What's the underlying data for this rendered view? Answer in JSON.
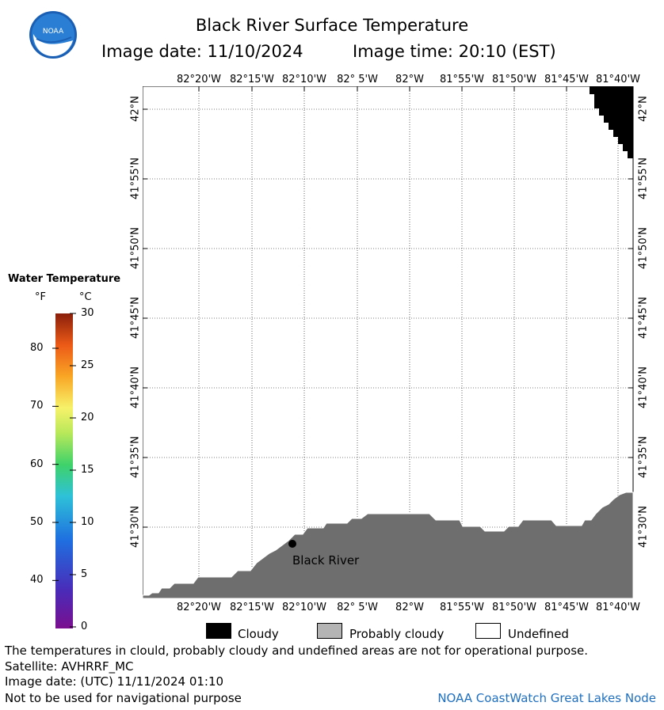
{
  "title": "Black River Surface Temperature",
  "image_date_label": "Image date: 11/10/2024",
  "image_time_label": "Image time: 20:10 (EST)",
  "logo_text": "NOAA",
  "lon_labels": [
    "82°20'W",
    "82°15'W",
    "82°10'W",
    "82° 5'W",
    "82°W",
    "81°55'W",
    "81°50'W",
    "81°45'W",
    "81°40'W"
  ],
  "lat_labels": [
    "42°N",
    "41°55'N",
    "41°50'N",
    "41°45'N",
    "41°40'N",
    "41°35'N",
    "41°30'N"
  ],
  "place_label": "Black River",
  "colorbar": {
    "title": "Water Temperature",
    "unit_f": "°F",
    "unit_c": "°C",
    "f_ticks": [
      "80",
      "70",
      "60",
      "50",
      "40"
    ],
    "c_ticks": [
      "30",
      "25",
      "20",
      "15",
      "10",
      "5",
      "0"
    ]
  },
  "legend": {
    "cloudy": "Cloudy",
    "probably_cloudy": "Probably cloudy",
    "undefined": "Undefined",
    "colors": {
      "cloudy": "#000000",
      "probably_cloudy": "#b4b4b4",
      "undefined": "#ffffff",
      "land": "#6e6e6e"
    }
  },
  "notes": {
    "disclaimer": "The temperatures in clould, probably cloudy and undefined areas are not for operational purpose.",
    "satellite": "Satellite: AVHRRF_MC",
    "utc_date": "Image date: (UTC) 11/11/2024  01:10",
    "nav_warning": "Not to be used for navigational purpose",
    "credit": "NOAA CoastWatch Great Lakes Node"
  }
}
